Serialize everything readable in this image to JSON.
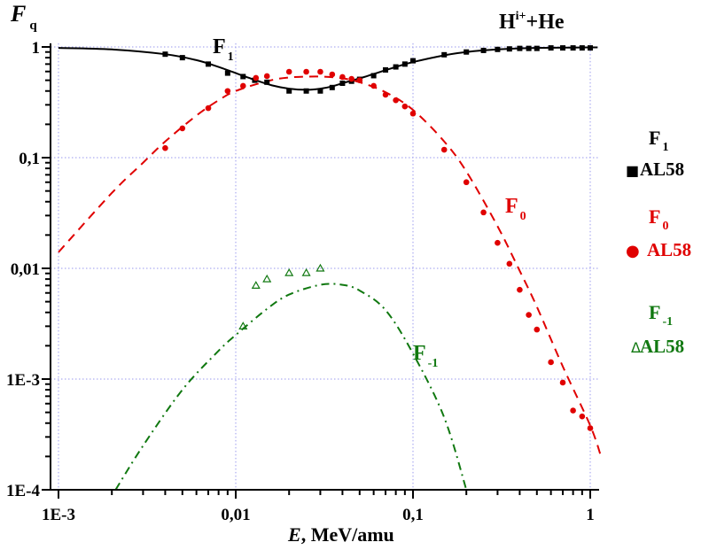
{
  "chart_data": {
    "type": "scatter",
    "title": "H^i+ +He",
    "title_main": "H",
    "title_sup": "i+",
    "title_rest": "+He",
    "xlabel_italic": "E",
    "xlabel_rest": ", MeV/amu",
    "ylabel_main": "F",
    "ylabel_sub": "q",
    "xscale": "log",
    "yscale": "log",
    "xlim": [
      0.00095,
      1.1
    ],
    "ylim": [
      0.0001,
      1.08
    ],
    "grid": true,
    "x_ticks": [
      {
        "value": 0.001,
        "label": "1E-3"
      },
      {
        "value": 0.01,
        "label": "0,01"
      },
      {
        "value": 0.1,
        "label": "0,1"
      },
      {
        "value": 1,
        "label": "1"
      }
    ],
    "y_ticks": [
      {
        "value": 1,
        "label": "1"
      },
      {
        "value": 0.1,
        "label": "0,1"
      },
      {
        "value": 0.01,
        "label": "0,01"
      },
      {
        "value": 0.001,
        "label": "1E-3"
      },
      {
        "value": 0.0001,
        "label": "1E-4"
      }
    ],
    "series": [
      {
        "name": "F1 theory",
        "label_main": "F",
        "label_sub": "1",
        "color": "#000000",
        "style": "solid",
        "x": [
          0.001,
          0.002,
          0.004,
          0.006,
          0.008,
          0.01,
          0.013,
          0.016,
          0.02,
          0.025,
          0.03,
          0.035,
          0.04,
          0.05,
          0.06,
          0.08,
          0.1,
          0.15,
          0.2,
          0.3,
          0.5,
          1,
          1.1
        ],
        "y": [
          0.98,
          0.95,
          0.86,
          0.76,
          0.66,
          0.58,
          0.5,
          0.45,
          0.42,
          0.41,
          0.42,
          0.44,
          0.47,
          0.52,
          0.57,
          0.66,
          0.73,
          0.84,
          0.9,
          0.95,
          0.98,
          0.99,
          0.99
        ]
      },
      {
        "name": "F0 theory",
        "label_main": "F",
        "label_sub": "0",
        "color": "#e00000",
        "style": "dashed",
        "x": [
          0.001,
          0.002,
          0.003,
          0.004,
          0.006,
          0.008,
          0.01,
          0.015,
          0.02,
          0.03,
          0.04,
          0.05,
          0.07,
          0.1,
          0.15,
          0.2,
          0.3,
          0.4,
          0.5,
          0.7,
          1,
          1.15
        ],
        "y": [
          0.014,
          0.048,
          0.09,
          0.14,
          0.24,
          0.33,
          0.4,
          0.49,
          0.53,
          0.54,
          0.52,
          0.48,
          0.39,
          0.27,
          0.14,
          0.075,
          0.024,
          0.0095,
          0.0045,
          0.0013,
          0.00038,
          0.0002
        ]
      },
      {
        "name": "F-1 theory",
        "label_main": "F",
        "label_sub": "-1",
        "color": "#107810",
        "style": "dashdot",
        "x": [
          0.0021,
          0.003,
          0.005,
          0.008,
          0.01,
          0.015,
          0.02,
          0.03,
          0.04,
          0.05,
          0.07,
          0.1,
          0.15,
          0.2
        ],
        "y": [
          0.0001,
          0.00025,
          0.0008,
          0.0018,
          0.0025,
          0.0043,
          0.0058,
          0.0071,
          0.0071,
          0.0063,
          0.0042,
          0.0017,
          0.00045,
          0.0001
        ]
      },
      {
        "name": "F1 AL58",
        "marker": "square",
        "color": "#000000",
        "x": [
          0.004,
          0.005,
          0.007,
          0.009,
          0.011,
          0.0128,
          0.015,
          0.02,
          0.025,
          0.03,
          0.035,
          0.04,
          0.045,
          0.05,
          0.06,
          0.07,
          0.08,
          0.09,
          0.1,
          0.15,
          0.2,
          0.25,
          0.3,
          0.35,
          0.4,
          0.45,
          0.5,
          0.6,
          0.7,
          0.8,
          0.9,
          1.0
        ],
        "y": [
          0.86,
          0.8,
          0.7,
          0.58,
          0.54,
          0.5,
          0.48,
          0.4,
          0.4,
          0.4,
          0.43,
          0.47,
          0.49,
          0.51,
          0.55,
          0.62,
          0.66,
          0.7,
          0.75,
          0.85,
          0.9,
          0.93,
          0.95,
          0.96,
          0.97,
          0.97,
          0.97,
          0.98,
          0.98,
          0.98,
          0.98,
          0.98
        ]
      },
      {
        "name": "F0 AL58",
        "marker": "circle",
        "color": "#e00000",
        "x": [
          0.004,
          0.005,
          0.007,
          0.009,
          0.011,
          0.013,
          0.015,
          0.02,
          0.025,
          0.03,
          0.035,
          0.04,
          0.045,
          0.05,
          0.06,
          0.07,
          0.08,
          0.09,
          0.1,
          0.15,
          0.2,
          0.25,
          0.3,
          0.35,
          0.4,
          0.45,
          0.5,
          0.6,
          0.7,
          0.8,
          0.9,
          1.0
        ],
        "y": [
          0.122,
          0.184,
          0.28,
          0.4,
          0.445,
          0.525,
          0.545,
          0.597,
          0.597,
          0.597,
          0.565,
          0.535,
          0.515,
          0.5,
          0.445,
          0.37,
          0.33,
          0.29,
          0.25,
          0.118,
          0.06,
          0.032,
          0.017,
          0.011,
          0.0064,
          0.0038,
          0.0028,
          0.00142,
          0.00093,
          0.00052,
          0.00046,
          0.00036
        ]
      },
      {
        "name": "F-1 AL58",
        "marker": "triangle",
        "color": "#107810",
        "x": [
          0.011,
          0.013,
          0.015,
          0.02,
          0.025,
          0.03
        ],
        "y": [
          0.003,
          0.007,
          0.008,
          0.0091,
          0.0091,
          0.01
        ]
      }
    ],
    "annotations": [
      {
        "text_main": "F",
        "text_sub": "1",
        "color": "#000000",
        "x": 0.0092,
        "y": 0.85
      },
      {
        "text_main": "F",
        "text_sub": "0",
        "color": "#e00000",
        "x": 0.27,
        "y": 0.022
      },
      {
        "text_main": "F",
        "text_sub": "-1",
        "color": "#107810",
        "x": 0.1,
        "y": 0.0017
      }
    ],
    "legend": {
      "placement": "right",
      "entries": [
        {
          "title_main": "F",
          "title_sub": "1",
          "symbol": "■",
          "label": "AL58",
          "color": "#000000"
        },
        {
          "title_main": "F",
          "title_sub": "0",
          "symbol": "●",
          "label": "AL58",
          "color": "#e00000"
        },
        {
          "title_main": "F",
          "title_sub": "-1",
          "symbol": "Δ",
          "label": "AL58",
          "color": "#107810"
        }
      ]
    },
    "grid_color": "#9999ee"
  }
}
